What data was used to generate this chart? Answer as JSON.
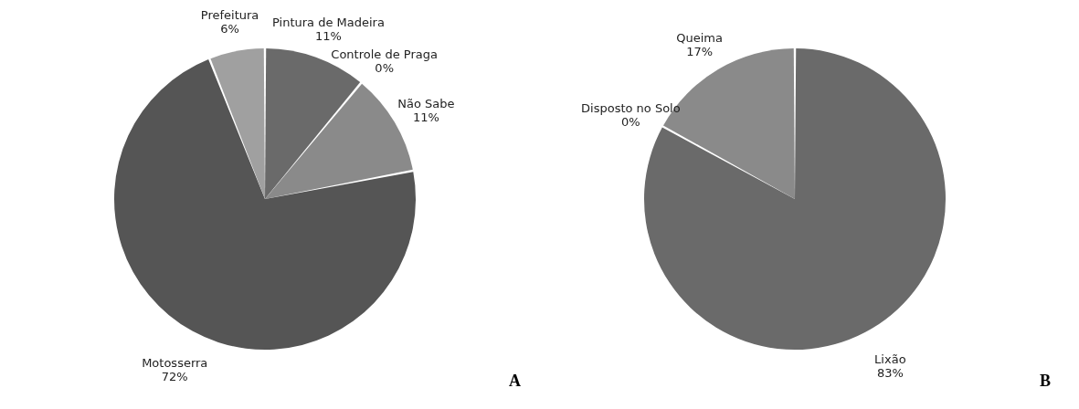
{
  "chart_data": [
    {
      "type": "pie",
      "categories": [
        "Pintura de Madeira",
        "Controle de Praga",
        "Não Sabe",
        "Motosserra",
        "Prefeitura"
      ],
      "values": [
        11,
        0,
        11,
        72,
        6
      ],
      "colors": [
        "#6a6a6a",
        "#d0d0d0",
        "#8a8a8a",
        "#555555",
        "#a0a0a0"
      ],
      "value_labels": [
        "11%",
        "0%",
        "11%",
        "72%",
        "6%"
      ],
      "legend": false,
      "annotations": [
        "A"
      ]
    },
    {
      "type": "pie",
      "categories": [
        "Lixão",
        "Disposto no Solo",
        "Queima"
      ],
      "values": [
        83,
        0,
        17
      ],
      "colors": [
        "#656565",
        "#f0f0f0",
        "#8a8a8a"
      ],
      "value_labels": [
        "83%",
        "0%",
        "17%"
      ],
      "legend": false,
      "annotations": [
        "B"
      ]
    }
  ]
}
